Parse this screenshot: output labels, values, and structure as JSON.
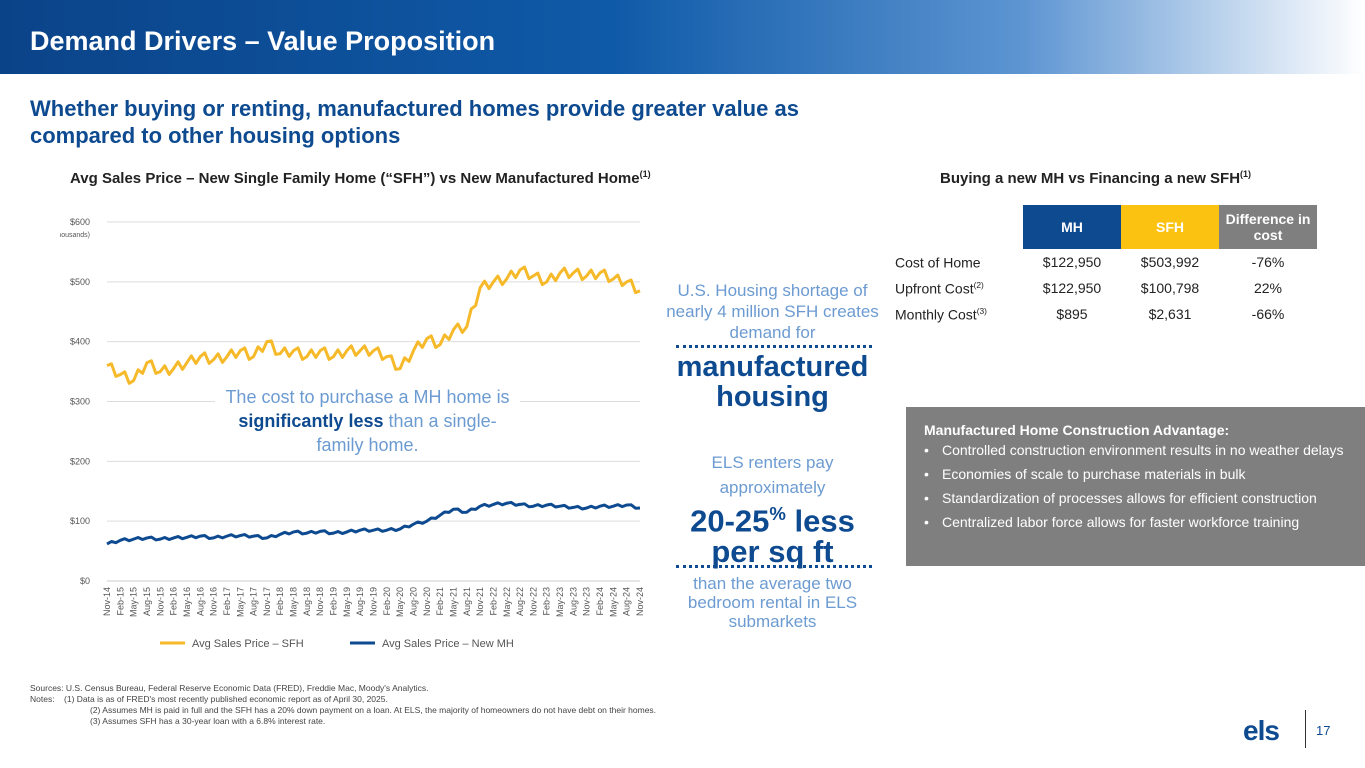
{
  "header": {
    "title": "Demand Drivers – Value Proposition"
  },
  "subtitle": "Whether buying or renting, manufactured homes provide greater value as compared to other housing options",
  "chart_title": "Avg Sales Price – New Single Family Home (“SFH”) vs New Manufactured Home",
  "chart_title_sup": "(1)",
  "chart_data": {
    "type": "line",
    "title": "Avg Sales Price – New Single Family Home (“SFH”) vs New Manufactured Home",
    "ylabel": "(In thousands)",
    "ylim": [
      0,
      600
    ],
    "yticks": [
      "$0",
      "$100",
      "$200",
      "$300",
      "$400",
      "$500",
      "$600"
    ],
    "categories": [
      "Nov-14",
      "Feb-15",
      "May-15",
      "Aug-15",
      "Nov-15",
      "Feb-16",
      "May-16",
      "Aug-16",
      "Nov-16",
      "Feb-17",
      "May-17",
      "Aug-17",
      "Nov-17",
      "Feb-18",
      "May-18",
      "Aug-18",
      "Nov-18",
      "Feb-19",
      "May-19",
      "Aug-19",
      "Nov-19",
      "Feb-20",
      "May-20",
      "Aug-20",
      "Nov-20",
      "Feb-21",
      "May-21",
      "Aug-21",
      "Nov-21",
      "Feb-22",
      "May-22",
      "Aug-22",
      "Nov-22",
      "Feb-23",
      "May-23",
      "Aug-23",
      "Nov-23",
      "Feb-24",
      "May-24",
      "Aug-24",
      "Nov-24"
    ],
    "series": [
      {
        "name": "Avg Sales Price – SFH",
        "color": "#f6b92a",
        "values": [
          360,
          345,
          335,
          365,
          350,
          355,
          365,
          375,
          370,
          375,
          385,
          375,
          400,
          380,
          385,
          375,
          385,
          375,
          385,
          385,
          385,
          375,
          355,
          385,
          405,
          395,
          420,
          425,
          490,
          500,
          505,
          520,
          510,
          500,
          515,
          515,
          510,
          515,
          505,
          500,
          485
        ]
      },
      {
        "name": "Avg Sales Price – New MH",
        "color": "#0d4a90",
        "values": [
          62,
          68,
          70,
          72,
          70,
          72,
          73,
          75,
          72,
          75,
          76,
          75,
          72,
          78,
          82,
          80,
          83,
          80,
          82,
          85,
          85,
          85,
          87,
          95,
          100,
          110,
          120,
          115,
          125,
          128,
          130,
          128,
          125,
          127,
          125,
          123,
          122,
          125,
          125,
          127,
          122
        ]
      }
    ],
    "legend": "bottom",
    "grid": true
  },
  "annotation": {
    "pre": "The cost to purchase a MH home is",
    "bold": "significantly less",
    "post": "than a single-family home."
  },
  "middle": {
    "shortage": "U.S. Housing shortage of nearly 4 million SFH creates demand for",
    "big1": "manufactured housing",
    "renters": "ELS renters pay approximately",
    "big2a": "20-25",
    "big2pct": "%",
    "big2b": " less per sq ft",
    "tail": "than the average two bedroom rental in ELS submarkets"
  },
  "table": {
    "title": "Buying a new MH vs Financing a new SFH",
    "title_sup": "(1)",
    "headers": [
      "MH",
      "SFH",
      "Difference in cost"
    ],
    "rows": [
      {
        "label": "Cost of Home",
        "sup": "",
        "mh": "$122,950",
        "sfh": "$503,992",
        "diff": "-76%"
      },
      {
        "label": "Upfront Cost",
        "sup": "(2)",
        "mh": "$122,950",
        "sfh": "$100,798",
        "diff": "22%"
      },
      {
        "label": "Monthly Cost",
        "sup": "(3)",
        "mh": "$895",
        "sfh": "$2,631",
        "diff": "-66%"
      }
    ],
    "colors": {
      "mh": "#0d4a90",
      "sfh": "#fcc212",
      "diff": "#7f7f7f"
    }
  },
  "advantage": {
    "title": "Manufactured Home Construction Advantage:",
    "items": [
      "Controlled construction environment results in no weather delays",
      "Economies of scale to purchase materials in bulk",
      "Standardization of processes allows for efficient construction",
      "Centralized labor force allows for faster workforce training"
    ]
  },
  "notes": {
    "sources": "Sources: U.S. Census Bureau, Federal Reserve Economic Data (FRED), Freddie Mac, Moody's Analytics.",
    "n1": "Notes:    (1) Data is as of FRED's most recently published economic report as of April 30, 2025.",
    "n2": "(2) Assumes MH is paid in full and the SFH has a 20% down payment on a loan. At ELS, the majority of homeowners do not have debt on their homes.",
    "n3": "(3) Assumes SFH has a 30-year loan with a 6.8% interest rate."
  },
  "footer": {
    "logo": "els",
    "page": "17"
  }
}
